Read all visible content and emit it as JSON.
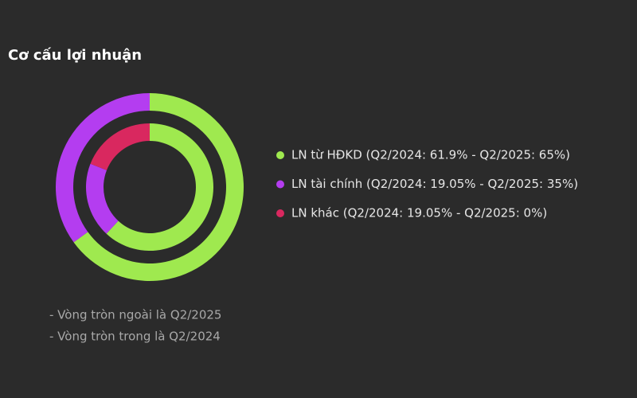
{
  "chart_data": {
    "type": "donut",
    "title": "Cơ cấu lợi nhuận",
    "categories": [
      "LN từ HĐKD (Q2/2024: 61.9% - Q2/2025: 65%)",
      "LN tài chính (Q2/2024: 19.05% - Q2/2025: 35%)",
      "LN khác (Q2/2024: 19.05% - Q2/2025: 0%)"
    ],
    "colors": [
      "#9fe94f",
      "#b43df0",
      "#d9285f"
    ],
    "series": [
      {
        "values": [
          65,
          35,
          0
        ]
      },
      {
        "values": [
          61.9,
          19.05,
          19.05
        ]
      }
    ],
    "notes": [
      "- Vòng tròn ngoài là Q2/2025",
      "- Vòng tròn trong là Q2/2024"
    ]
  }
}
